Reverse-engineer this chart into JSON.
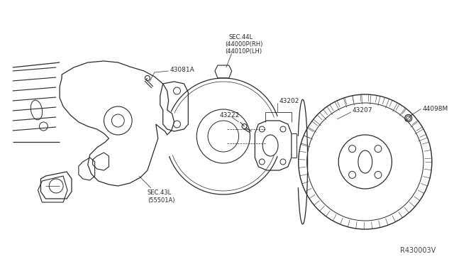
{
  "bg_color": "#ffffff",
  "line_color": "#2a2a2a",
  "figsize": [
    6.4,
    3.72
  ],
  "dpi": 100,
  "diagram_ref": "R430003V",
  "label_43081A": "43081A",
  "label_sec44": "SEC.44L\n(44000P(RH)\n(44010P(LH)",
  "label_43202": "43202",
  "label_43222": "43222",
  "label_43207": "43207",
  "label_sec43": "SEC.43L\n(55501A)",
  "label_44098M": "44098M"
}
